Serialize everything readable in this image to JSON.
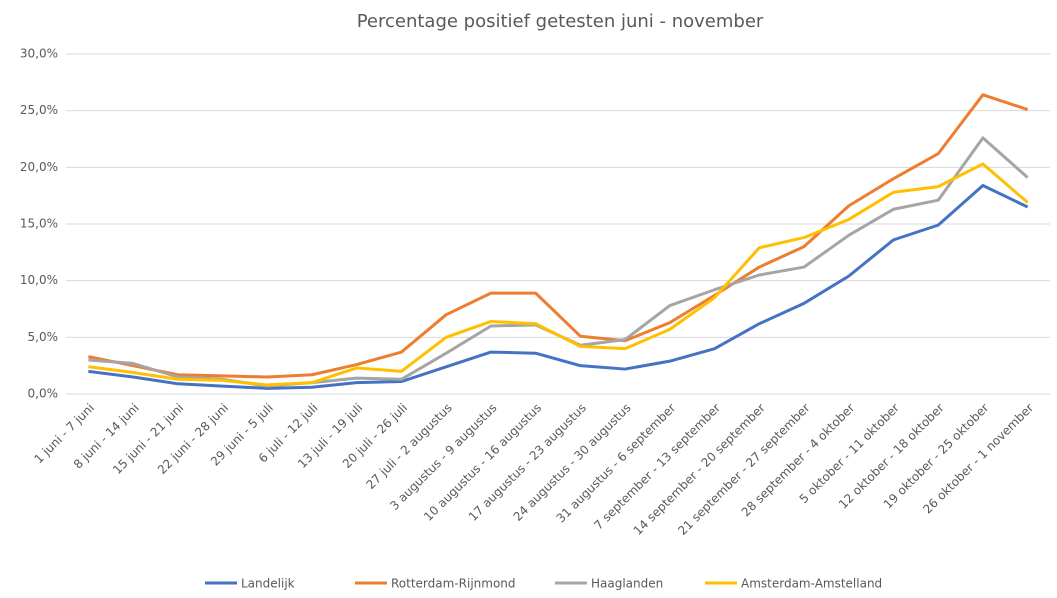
{
  "chart_data": {
    "type": "line",
    "title": "Percentage positief getesten  juni - november",
    "categories": [
      "1 juni - 7 juni",
      "8 juni - 14 juni",
      "15 juni - 21 juni",
      "22 juni - 28 juni",
      "29 juni - 5 juli",
      "6 juli - 12 juli",
      "13 juli - 19 juli",
      "20 juli - 26 juli",
      "27 juli - 2 augustus",
      "3 augustus - 9 augustus",
      "10 augustus - 16 augustus",
      "17 augustus - 23 augustus",
      "24 augustus - 30 augustus",
      "31  augustus - 6 september",
      "7 september - 13 september",
      "14 september - 20 september",
      "21 september - 27 september",
      "28 september - 4 oktober",
      "5 oktober  - 11 oktober",
      "12 oktober - 18 oktober",
      "19 oktober - 25 oktober",
      "26 oktober - 1 november"
    ],
    "series": [
      {
        "name": "Landelijk",
        "color": "#4472c4",
        "values": [
          2.0,
          1.5,
          0.9,
          0.7,
          0.5,
          0.6,
          1.0,
          1.1,
          2.4,
          3.7,
          3.6,
          2.5,
          2.2,
          2.9,
          4.0,
          6.2,
          8.0,
          10.4,
          13.6,
          14.9,
          18.4,
          16.5
        ]
      },
      {
        "name": "Rotterdam-Rijnmond",
        "color": "#ed7d31",
        "values": [
          3.3,
          2.5,
          1.7,
          1.6,
          1.5,
          1.7,
          2.6,
          3.7,
          7.0,
          8.9,
          8.9,
          5.1,
          4.7,
          6.3,
          8.7,
          11.2,
          13.0,
          16.6,
          19.0,
          21.2,
          26.4,
          25.1
        ]
      },
      {
        "name": "Haaglanden",
        "color": "#a5a5a5",
        "values": [
          3.0,
          2.7,
          1.5,
          1.3,
          0.7,
          1.0,
          1.4,
          1.3,
          3.6,
          6.0,
          6.1,
          4.3,
          4.8,
          7.8,
          9.2,
          10.5,
          11.2,
          14.0,
          16.3,
          17.1,
          22.6,
          19.1
        ]
      },
      {
        "name": "Amsterdam-Amstelland",
        "color": "#ffc000",
        "values": [
          2.4,
          1.9,
          1.3,
          1.2,
          0.8,
          1.0,
          2.3,
          2.0,
          5.0,
          6.4,
          6.2,
          4.2,
          4.0,
          5.7,
          8.5,
          12.9,
          13.8,
          15.4,
          17.8,
          18.3,
          20.3,
          16.9
        ]
      }
    ],
    "ylim": [
      0,
      30
    ],
    "yticks": [
      {
        "value": 0,
        "label": "0,0%"
      },
      {
        "value": 5,
        "label": "5,0%"
      },
      {
        "value": 10,
        "label": "10,0%"
      },
      {
        "value": 15,
        "label": "15,0%"
      },
      {
        "value": 20,
        "label": "20,0%"
      },
      {
        "value": 25,
        "label": "25,0%"
      },
      {
        "value": 30,
        "label": "30,0%"
      }
    ],
    "grid": true,
    "legend": "bottom"
  }
}
